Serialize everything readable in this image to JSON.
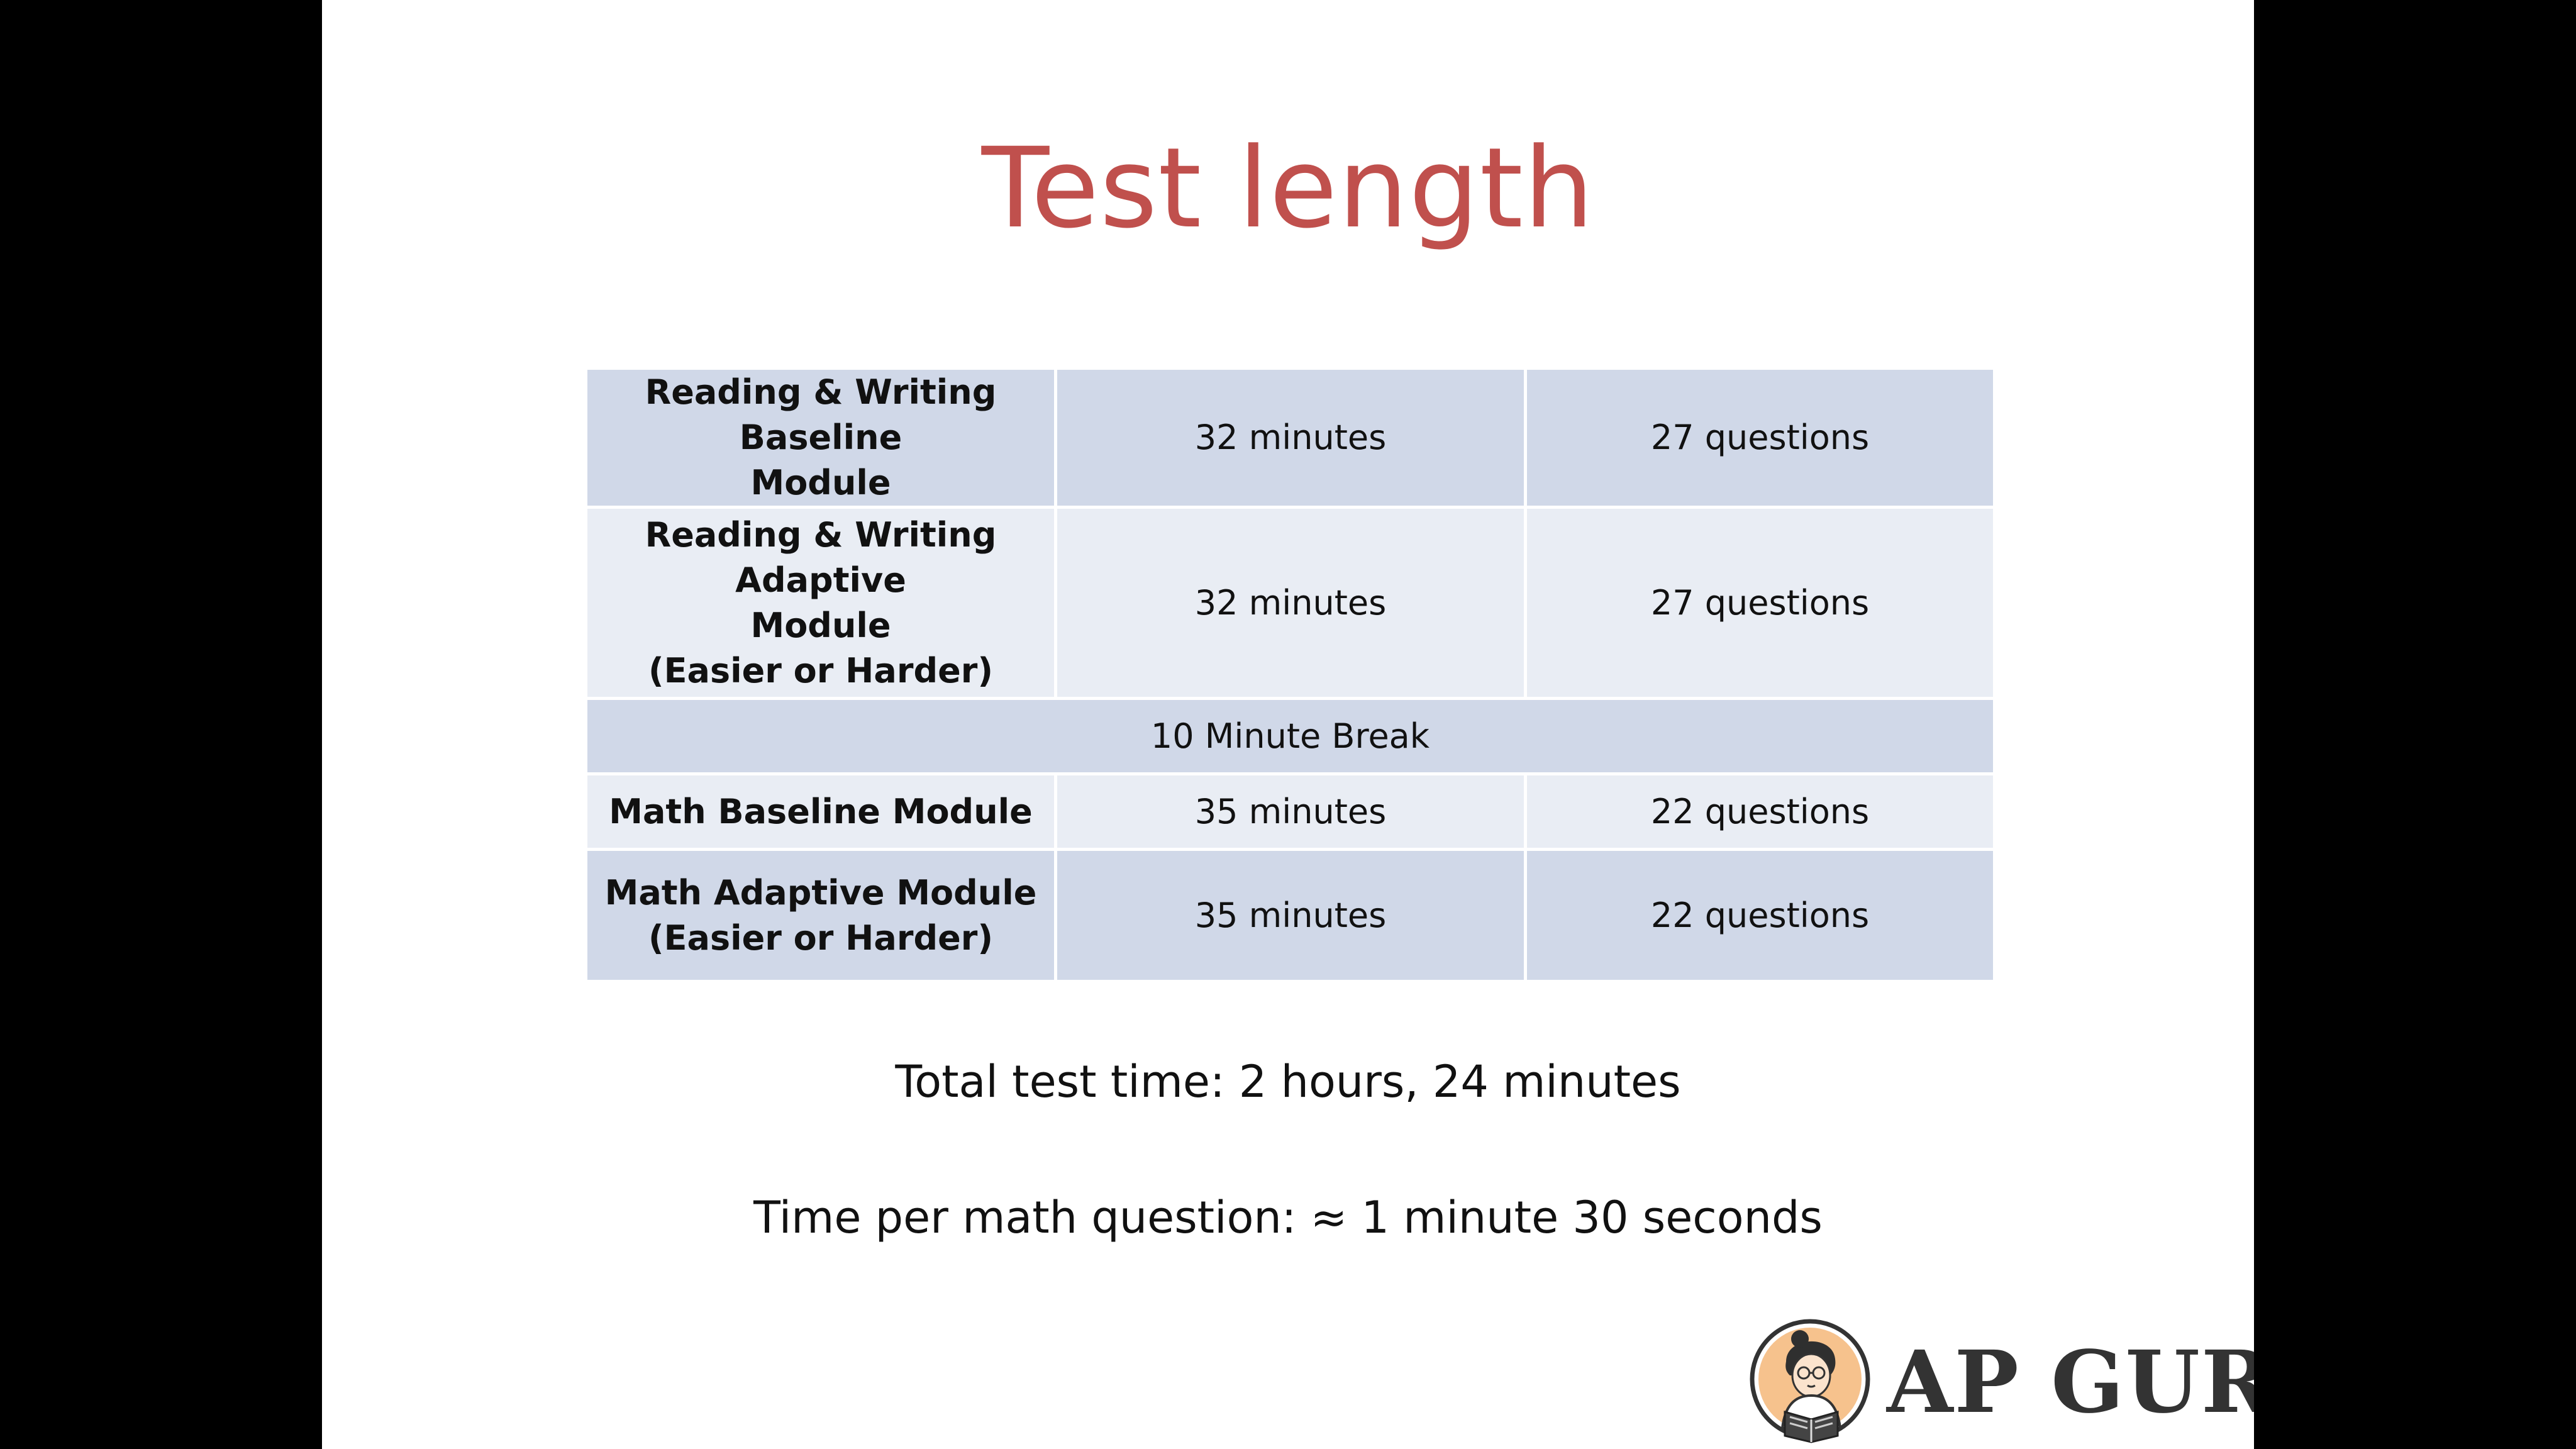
{
  "slide": {
    "title": "Test length",
    "title_color": "#c0504d"
  },
  "table": {
    "rows": [
      {
        "label": [
          "Reading & Writing Baseline",
          "Module"
        ],
        "time": "32 minutes",
        "questions": "27 questions",
        "shade": "dark"
      },
      {
        "label": [
          "Reading & Writing Adaptive",
          "Module",
          "(Easier or Harder)"
        ],
        "time": "32 minutes",
        "questions": "27 questions",
        "shade": "light"
      },
      {
        "break_text": "10 Minute Break",
        "shade": "dark"
      },
      {
        "label": [
          "Math Baseline Module"
        ],
        "time": "35 minutes",
        "questions": "22 questions",
        "shade": "light"
      },
      {
        "label": [
          "Math Adaptive Module",
          "(Easier or Harder)"
        ],
        "time": "35 minutes",
        "questions": "22 questions",
        "shade": "dark"
      }
    ],
    "colors": {
      "dark_row": "#d0d8e8",
      "light_row": "#e9edf4"
    }
  },
  "notes": {
    "total_time": "Total test time: 2 hours, 24 minutes",
    "per_math_question": "Time per math question: ≈ 1 minute 30 seconds"
  },
  "logo": {
    "text": "AP GURU",
    "icon": "reading-student-logo-icon"
  }
}
